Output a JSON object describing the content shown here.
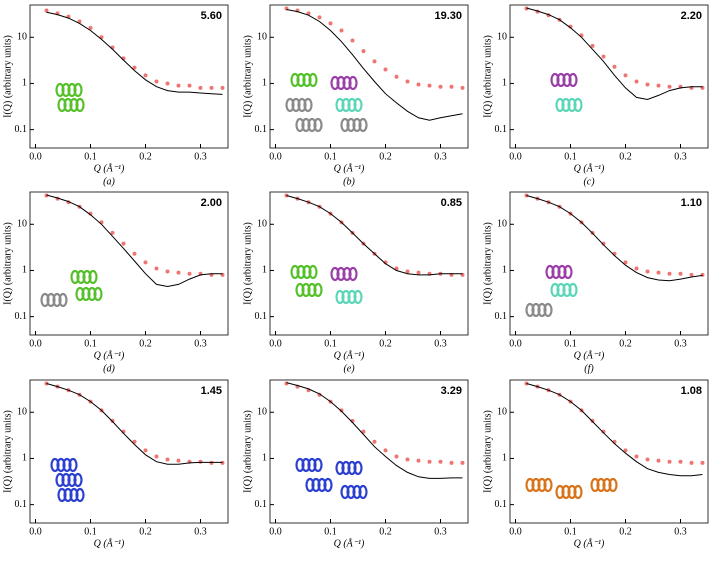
{
  "chart_data": [
    {
      "type": "line",
      "title": "5.60",
      "label": "(a)",
      "x_label": "Q (Å⁻¹)",
      "y_label": "I(Q) (arbitrary units)",
      "log_y": true,
      "xlim": [
        -0.01,
        0.35
      ],
      "ylim": [
        0.04,
        50
      ],
      "xticks": [
        {
          "value": 0,
          "label": "0.0"
        },
        0.1,
        0.2,
        0.3
      ],
      "yticks": [
        0.1,
        1,
        10
      ],
      "x": [
        0.02,
        0.04,
        0.06,
        0.08,
        0.1,
        0.12,
        0.14,
        0.16,
        0.18,
        0.2,
        0.22,
        0.24,
        0.26,
        0.28,
        0.3,
        0.32,
        0.34
      ],
      "series": [
        {
          "color": "#e8534f",
          "marker": "circle",
          "values": [
            38,
            33,
            28,
            22,
            16,
            10,
            6,
            3.5,
            2.2,
            1.5,
            1.1,
            1.0,
            0.9,
            0.9,
            0.8,
            0.8,
            0.8
          ]
        },
        {
          "color": "#000000",
          "marker": "none",
          "values": [
            35,
            31,
            26,
            20,
            14,
            9,
            5.5,
            3.2,
            1.9,
            1.2,
            0.85,
            0.7,
            0.65,
            0.65,
            0.62,
            0.6,
            0.58
          ]
        }
      ]
    },
    {
      "type": "line",
      "title": "19.30",
      "label": "(b)",
      "x_label": "Q (Å⁻¹)",
      "y_label": "I(Q) (arbitrary units)",
      "log_y": true,
      "xlim": [
        -0.01,
        0.35
      ],
      "ylim": [
        0.04,
        50
      ],
      "xticks": [
        {
          "value": 0,
          "label": "0.0"
        },
        0.1,
        0.2,
        0.3
      ],
      "yticks": [
        0.1,
        1,
        10
      ],
      "x": [
        0.02,
        0.04,
        0.06,
        0.08,
        0.1,
        0.12,
        0.14,
        0.16,
        0.18,
        0.2,
        0.22,
        0.24,
        0.26,
        0.28,
        0.3,
        0.32,
        0.34
      ],
      "series": [
        {
          "color": "#e8534f",
          "marker": "circle",
          "values": [
            42,
            38,
            33,
            27,
            20,
            14,
            8.5,
            5,
            3,
            2,
            1.4,
            1.1,
            0.95,
            0.9,
            0.85,
            0.85,
            0.8
          ]
        },
        {
          "color": "#000000",
          "marker": "none",
          "values": [
            40,
            36,
            30,
            22,
            14,
            8,
            4.2,
            2.1,
            1.1,
            0.6,
            0.38,
            0.25,
            0.18,
            0.16,
            0.18,
            0.2,
            0.22
          ]
        }
      ]
    },
    {
      "type": "line",
      "title": "2.20",
      "label": "(c)",
      "x_label": "Q (Å⁻¹)",
      "y_label": "I(Q) (arbitrary units)",
      "log_y": true,
      "xlim": [
        -0.01,
        0.35
      ],
      "ylim": [
        0.04,
        50
      ],
      "xticks": [
        {
          "value": 0,
          "label": "0.0"
        },
        0.1,
        0.2,
        0.3
      ],
      "yticks": [
        0.1,
        1,
        10
      ],
      "x": [
        0.02,
        0.04,
        0.06,
        0.08,
        0.1,
        0.12,
        0.14,
        0.16,
        0.18,
        0.2,
        0.22,
        0.24,
        0.26,
        0.28,
        0.3,
        0.32,
        0.34
      ],
      "series": [
        {
          "color": "#e8534f",
          "marker": "circle",
          "values": [
            42,
            36,
            30,
            24,
            17,
            11,
            6.5,
            3.8,
            2.3,
            1.5,
            1.1,
            0.95,
            0.9,
            0.85,
            0.85,
            0.8,
            0.8
          ]
        },
        {
          "color": "#000000",
          "marker": "none",
          "values": [
            43,
            37,
            31,
            24,
            16,
            10,
            5.5,
            3,
            1.5,
            0.8,
            0.5,
            0.45,
            0.55,
            0.7,
            0.8,
            0.85,
            0.85
          ]
        }
      ]
    },
    {
      "type": "line",
      "title": "2.00",
      "label": "(d)",
      "x_label": "Q (Å⁻¹)",
      "y_label": "I(Q) (arbitrary units)",
      "log_y": true,
      "xlim": [
        -0.01,
        0.35
      ],
      "ylim": [
        0.04,
        50
      ],
      "xticks": [
        {
          "value": 0,
          "label": "0.0"
        },
        0.1,
        0.2,
        0.3
      ],
      "yticks": [
        0.1,
        1,
        10
      ],
      "x": [
        0.02,
        0.04,
        0.06,
        0.08,
        0.1,
        0.12,
        0.14,
        0.16,
        0.18,
        0.2,
        0.22,
        0.24,
        0.26,
        0.28,
        0.3,
        0.32,
        0.34
      ],
      "series": [
        {
          "color": "#e8534f",
          "marker": "circle",
          "values": [
            42,
            36,
            30,
            24,
            17,
            11,
            6.5,
            3.8,
            2.3,
            1.5,
            1.1,
            0.95,
            0.9,
            0.85,
            0.85,
            0.8,
            0.8
          ]
        },
        {
          "color": "#000000",
          "marker": "none",
          "values": [
            43,
            37,
            31,
            24,
            16,
            10,
            5.5,
            3,
            1.6,
            0.85,
            0.5,
            0.45,
            0.5,
            0.65,
            0.8,
            0.85,
            0.85
          ]
        }
      ]
    },
    {
      "type": "line",
      "title": "0.85",
      "label": "(e)",
      "x_label": "Q (Å⁻¹)",
      "y_label": "I(Q) (arbitrary units)",
      "log_y": true,
      "xlim": [
        -0.01,
        0.35
      ],
      "ylim": [
        0.04,
        50
      ],
      "xticks": [
        {
          "value": 0,
          "label": "0.0"
        },
        0.1,
        0.2,
        0.3
      ],
      "yticks": [
        0.1,
        1,
        10
      ],
      "x": [
        0.02,
        0.04,
        0.06,
        0.08,
        0.1,
        0.12,
        0.14,
        0.16,
        0.18,
        0.2,
        0.22,
        0.24,
        0.26,
        0.28,
        0.3,
        0.32,
        0.34
      ],
      "series": [
        {
          "color": "#e8534f",
          "marker": "circle",
          "values": [
            42,
            36,
            30,
            24,
            17,
            11,
            6.5,
            3.8,
            2.3,
            1.5,
            1.1,
            0.95,
            0.9,
            0.85,
            0.85,
            0.8,
            0.8
          ]
        },
        {
          "color": "#000000",
          "marker": "none",
          "values": [
            42,
            36,
            30,
            24,
            17,
            11,
            6.5,
            3.8,
            2.3,
            1.4,
            1.0,
            0.85,
            0.8,
            0.8,
            0.85,
            0.85,
            0.85
          ]
        }
      ]
    },
    {
      "type": "line",
      "title": "1.10",
      "label": "(f)",
      "x_label": "Q (Å⁻¹)",
      "y_label": "I(Q) (arbitrary units)",
      "log_y": true,
      "xlim": [
        -0.01,
        0.35
      ],
      "ylim": [
        0.04,
        50
      ],
      "xticks": [
        {
          "value": 0,
          "label": "0.0"
        },
        0.1,
        0.2,
        0.3
      ],
      "yticks": [
        0.1,
        1,
        10
      ],
      "x": [
        0.02,
        0.04,
        0.06,
        0.08,
        0.1,
        0.12,
        0.14,
        0.16,
        0.18,
        0.2,
        0.22,
        0.24,
        0.26,
        0.28,
        0.3,
        0.32,
        0.34
      ],
      "series": [
        {
          "color": "#e8534f",
          "marker": "circle",
          "values": [
            42,
            36,
            30,
            24,
            17,
            11,
            6.5,
            3.8,
            2.3,
            1.5,
            1.1,
            0.95,
            0.9,
            0.85,
            0.85,
            0.8,
            0.8
          ]
        },
        {
          "color": "#000000",
          "marker": "none",
          "values": [
            42,
            36,
            30,
            24,
            17,
            11,
            6.4,
            3.6,
            2.1,
            1.3,
            0.9,
            0.7,
            0.62,
            0.6,
            0.65,
            0.72,
            0.78
          ]
        }
      ]
    },
    {
      "type": "line",
      "title": "1.45",
      "x_label": "Q (Å⁻¹)",
      "y_label": "I(Q) (arbitrary units)",
      "log_y": true,
      "xlim": [
        -0.01,
        0.35
      ],
      "ylim": [
        0.04,
        50
      ],
      "xticks": [
        {
          "value": 0,
          "label": "0.0"
        },
        0.1,
        0.2,
        0.3
      ],
      "yticks": [
        0.1,
        1,
        10
      ],
      "x": [
        0.02,
        0.04,
        0.06,
        0.08,
        0.1,
        0.12,
        0.14,
        0.16,
        0.18,
        0.2,
        0.22,
        0.24,
        0.26,
        0.28,
        0.3,
        0.32,
        0.34
      ],
      "series": [
        {
          "color": "#e8534f",
          "marker": "circle",
          "values": [
            42,
            36,
            30,
            24,
            17,
            11,
            6.5,
            3.8,
            2.3,
            1.5,
            1.1,
            0.95,
            0.9,
            0.85,
            0.85,
            0.8,
            0.8
          ]
        },
        {
          "color": "#000000",
          "marker": "none",
          "values": [
            42,
            36,
            30,
            24,
            17,
            11,
            6.3,
            3.5,
            2,
            1.2,
            0.85,
            0.75,
            0.75,
            0.8,
            0.82,
            0.82,
            0.82
          ]
        }
      ]
    },
    {
      "type": "line",
      "title": "3.29",
      "x_label": "Q (Å⁻¹)",
      "y_label": "I(Q) (arbitrary units)",
      "log_y": true,
      "xlim": [
        -0.01,
        0.35
      ],
      "ylim": [
        0.04,
        50
      ],
      "xticks": [
        {
          "value": 0,
          "label": "0.0"
        },
        0.1,
        0.2,
        0.3
      ],
      "yticks": [
        0.1,
        1,
        10
      ],
      "x": [
        0.02,
        0.04,
        0.06,
        0.08,
        0.1,
        0.12,
        0.14,
        0.16,
        0.18,
        0.2,
        0.22,
        0.24,
        0.26,
        0.28,
        0.3,
        0.32,
        0.34
      ],
      "series": [
        {
          "color": "#e8534f",
          "marker": "circle",
          "values": [
            42,
            36,
            30,
            24,
            17,
            11,
            6.5,
            3.8,
            2.3,
            1.5,
            1.1,
            0.95,
            0.9,
            0.85,
            0.85,
            0.8,
            0.8
          ]
        },
        {
          "color": "#000000",
          "marker": "none",
          "values": [
            44,
            38,
            32,
            25,
            17,
            10.5,
            6,
            3.3,
            1.8,
            1.1,
            0.7,
            0.5,
            0.4,
            0.37,
            0.37,
            0.38,
            0.38
          ]
        }
      ]
    },
    {
      "type": "line",
      "title": "1.08",
      "x_label": "Q (Å⁻¹)",
      "y_label": "I(Q) (arbitrary units)",
      "log_y": true,
      "xlim": [
        -0.01,
        0.35
      ],
      "ylim": [
        0.04,
        50
      ],
      "xticks": [
        {
          "value": 0,
          "label": "0.0"
        },
        0.1,
        0.2,
        0.3
      ],
      "yticks": [
        0.1,
        1,
        10
      ],
      "x": [
        0.02,
        0.04,
        0.06,
        0.08,
        0.1,
        0.12,
        0.14,
        0.16,
        0.18,
        0.2,
        0.22,
        0.24,
        0.26,
        0.28,
        0.3,
        0.32,
        0.34
      ],
      "series": [
        {
          "color": "#e8534f",
          "marker": "circle",
          "values": [
            42,
            36,
            30,
            24,
            17,
            11,
            6.5,
            3.8,
            2.3,
            1.5,
            1.1,
            0.95,
            0.9,
            0.85,
            0.85,
            0.8,
            0.8
          ]
        },
        {
          "color": "#000000",
          "marker": "none",
          "values": [
            42,
            36,
            30,
            24,
            17,
            11,
            6.3,
            3.6,
            2.1,
            1.3,
            0.85,
            0.6,
            0.5,
            0.45,
            0.42,
            0.42,
            0.45
          ]
        }
      ]
    }
  ]
}
